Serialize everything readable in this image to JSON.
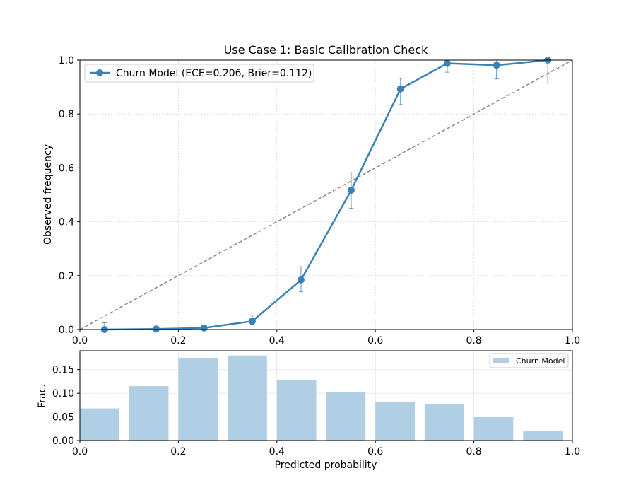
{
  "chart_data": [
    {
      "type": "line",
      "title": "Use Case 1: Basic Calibration Check",
      "xlabel": "",
      "ylabel": "Observed frequency",
      "xlim": [
        0,
        1
      ],
      "ylim": [
        0,
        1
      ],
      "x_ticks": [
        "0.0",
        "0.2",
        "0.4",
        "0.6",
        "0.8",
        "1.0"
      ],
      "y_ticks": [
        "0.0",
        "0.2",
        "0.4",
        "0.6",
        "0.8",
        "1.0"
      ],
      "grid": true,
      "legend_position": "top-left",
      "reference_line": {
        "from": [
          0,
          0
        ],
        "to": [
          1,
          1
        ],
        "style": "dashed",
        "color": "#888888"
      },
      "series": [
        {
          "name": "Churn Model (ECE=0.206, Brier=0.112)",
          "color": "#3a81b7",
          "x": [
            0.05,
            0.155,
            0.252,
            0.35,
            0.449,
            0.551,
            0.651,
            0.746,
            0.846,
            0.95
          ],
          "y": [
            0.0,
            0.002,
            0.006,
            0.031,
            0.184,
            0.517,
            0.893,
            0.988,
            0.981,
            1.0
          ],
          "err_low": [
            0.0,
            0.0,
            0.002,
            0.018,
            0.14,
            0.45,
            0.835,
            0.955,
            0.93,
            0.915
          ],
          "err_high": [
            0.025,
            0.012,
            0.014,
            0.053,
            0.233,
            0.582,
            0.932,
            1.0,
            1.0,
            1.0
          ]
        }
      ]
    },
    {
      "type": "bar",
      "title": "",
      "xlabel": "Predicted probability",
      "ylabel": "Frac.",
      "xlim": [
        0,
        1
      ],
      "ylim": [
        0,
        0.19
      ],
      "x_ticks": [
        "0.0",
        "0.2",
        "0.4",
        "0.6",
        "0.8",
        "1.0"
      ],
      "y_ticks": [
        "0.00",
        "0.05",
        "0.10",
        "0.15"
      ],
      "grid": true,
      "legend_position": "top-right",
      "bin_width": 0.08,
      "series": [
        {
          "name": "Churn Model",
          "color": "#b0cfe4",
          "x": [
            0.04,
            0.14,
            0.24,
            0.34,
            0.44,
            0.54,
            0.64,
            0.74,
            0.84,
            0.94
          ],
          "values": [
            0.068,
            0.115,
            0.175,
            0.18,
            0.128,
            0.103,
            0.082,
            0.077,
            0.05,
            0.02
          ]
        }
      ]
    }
  ]
}
